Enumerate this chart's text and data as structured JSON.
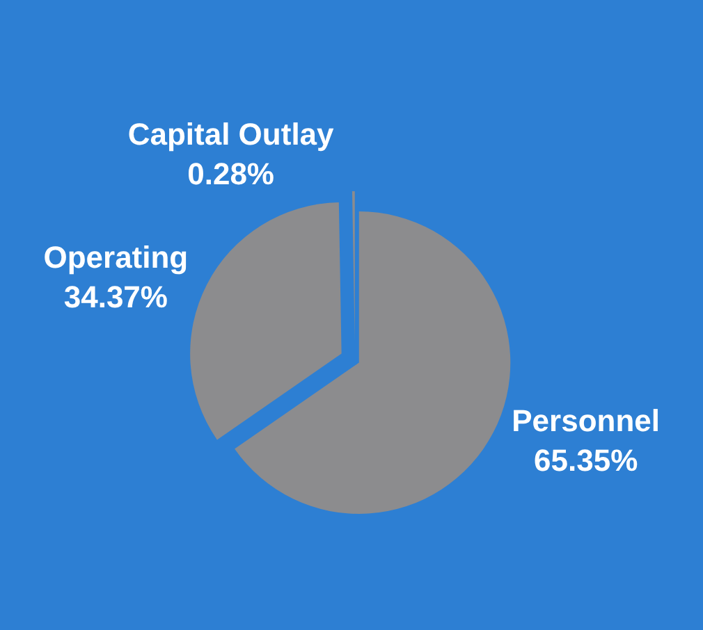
{
  "chart_data": {
    "type": "pie",
    "categories": [
      "Personnel",
      "Operating",
      "Capital Outlay"
    ],
    "values": [
      65.35,
      34.37,
      0.28
    ],
    "value_labels": [
      "65.35%",
      "34.37%",
      "0.28%"
    ],
    "colors": [
      "#8c8c8e",
      "#8c8c8e",
      "#8c8c8e"
    ],
    "legend": false
  }
}
